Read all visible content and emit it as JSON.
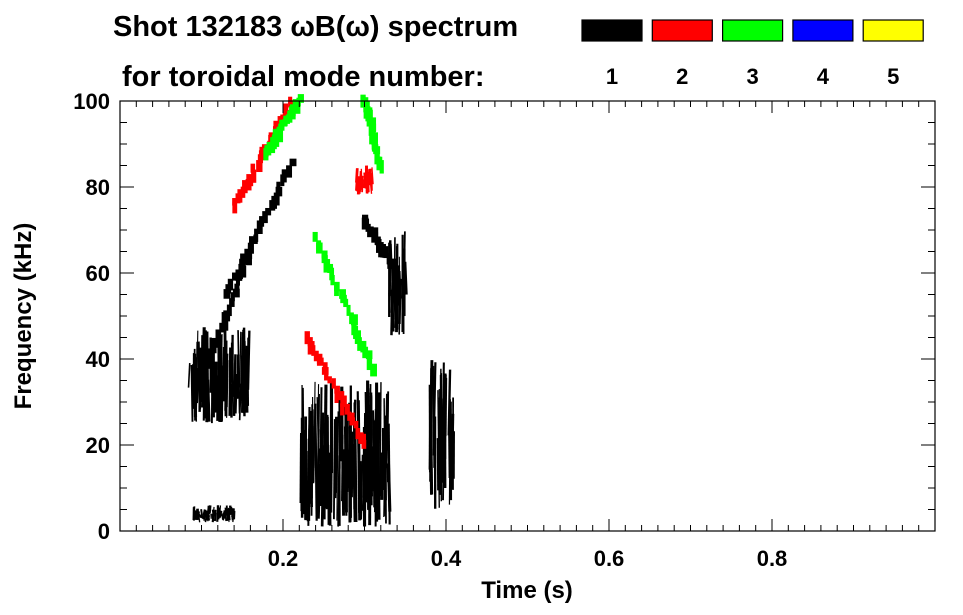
{
  "chart_data": {
    "type": "heatmap",
    "title_line1": "Shot 132183 ωB(ω) spectrum",
    "title_line2": "for toroidal mode number:",
    "xlabel": "Time (s)",
    "ylabel": "Frequency (kHz)",
    "xlim": [
      0.0,
      1.0
    ],
    "ylim": [
      0,
      100
    ],
    "x_ticks": [
      0.2,
      0.4,
      0.6,
      0.8
    ],
    "x_tick_labels": [
      "0.2",
      "0.4",
      "0.6",
      "0.8"
    ],
    "y_ticks": [
      0,
      20,
      40,
      60,
      80,
      100
    ],
    "y_tick_labels": [
      "0",
      "20",
      "40",
      "60",
      "80",
      "100"
    ],
    "legend_placement": "top-right",
    "legend": [
      {
        "label": "1",
        "color": "#000000"
      },
      {
        "label": "2",
        "color": "#ff0000"
      },
      {
        "label": "3",
        "color": "#00ff00"
      },
      {
        "label": "4",
        "color": "#0000ff"
      },
      {
        "label": "5",
        "color": "#ffff00"
      }
    ],
    "features": [
      {
        "mode": "1",
        "shape": "blob",
        "t": [
          0.085,
          0.16
        ],
        "f": [
          25,
          48
        ]
      },
      {
        "mode": "1",
        "shape": "streak",
        "from": [
          0.1,
          35
        ],
        "to": [
          0.16,
          65
        ]
      },
      {
        "mode": "1",
        "shape": "blob",
        "t": [
          0.09,
          0.14
        ],
        "f": [
          2,
          6
        ]
      },
      {
        "mode": "1",
        "shape": "streak",
        "from": [
          0.13,
          55
        ],
        "to": [
          0.21,
          85
        ]
      },
      {
        "mode": "1",
        "shape": "blob",
        "t": [
          0.22,
          0.33
        ],
        "f": [
          1,
          35
        ]
      },
      {
        "mode": "1",
        "shape": "blob",
        "t": [
          0.33,
          0.35
        ],
        "f": [
          45,
          70
        ]
      },
      {
        "mode": "1",
        "shape": "streak",
        "from": [
          0.3,
          72
        ],
        "to": [
          0.34,
          60
        ]
      },
      {
        "mode": "1",
        "shape": "blob",
        "t": [
          0.38,
          0.41
        ],
        "f": [
          5,
          40
        ]
      },
      {
        "mode": "2",
        "shape": "streak",
        "from": [
          0.14,
          75
        ],
        "to": [
          0.21,
          100
        ]
      },
      {
        "mode": "2",
        "shape": "streak",
        "from": [
          0.23,
          45
        ],
        "to": [
          0.3,
          20
        ]
      },
      {
        "mode": "2",
        "shape": "blob",
        "t": [
          0.29,
          0.31
        ],
        "f": [
          78,
          85
        ]
      },
      {
        "mode": "3",
        "shape": "streak",
        "from": [
          0.18,
          88
        ],
        "to": [
          0.22,
          100
        ]
      },
      {
        "mode": "3",
        "shape": "streak",
        "from": [
          0.24,
          68
        ],
        "to": [
          0.31,
          38
        ]
      },
      {
        "mode": "3",
        "shape": "streak",
        "from": [
          0.3,
          100
        ],
        "to": [
          0.32,
          85
        ]
      }
    ]
  }
}
